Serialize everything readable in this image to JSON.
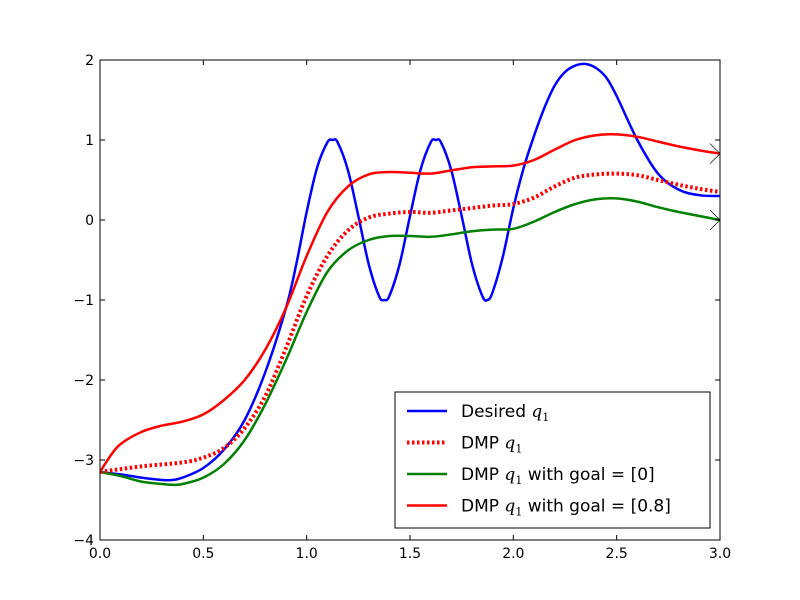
{
  "chart_data": {
    "type": "line",
    "title": "",
    "xlabel": "",
    "ylabel": "",
    "xlim": [
      0,
      3
    ],
    "ylim": [
      -4,
      2
    ],
    "xticks": [
      0,
      0.5,
      1,
      1.5,
      2,
      2.5,
      3
    ],
    "xtick_labels": [
      "0.0",
      "0.5",
      "1.0",
      "1.5",
      "2.0",
      "2.5",
      "3.0"
    ],
    "yticks": [
      -4,
      -3,
      -2,
      -1,
      0,
      1,
      2
    ],
    "ytick_labels": [
      "−4",
      "−3",
      "−2",
      "−1",
      "0",
      "1",
      "2"
    ],
    "grid": false,
    "legend_position": "bottom-right",
    "series": [
      {
        "name": "Desired q1",
        "legend_text": "Desired ",
        "legend_symbol": "q",
        "legend_subscript": "1",
        "legend_suffix": "",
        "color": "#0000ff",
        "style": "solid",
        "x": [
          0,
          0.1,
          0.2,
          0.3,
          0.35,
          0.4,
          0.5,
          0.6,
          0.7,
          0.8,
          0.9,
          0.95,
          1.0,
          1.05,
          1.1,
          1.125,
          1.15,
          1.2,
          1.25,
          1.3,
          1.35,
          1.375,
          1.4,
          1.45,
          1.5,
          1.55,
          1.6,
          1.625,
          1.65,
          1.7,
          1.75,
          1.8,
          1.85,
          1.875,
          1.9,
          1.95,
          2.0,
          2.05,
          2.1,
          2.15,
          2.2,
          2.25,
          2.3,
          2.35,
          2.4,
          2.45,
          2.5,
          2.6,
          2.7,
          2.8,
          2.9,
          3.0
        ],
        "y": [
          -3.15,
          -3.18,
          -3.22,
          -3.25,
          -3.25,
          -3.22,
          -3.1,
          -2.87,
          -2.5,
          -1.9,
          -1.1,
          -0.55,
          0.1,
          0.65,
          0.97,
          1.0,
          0.97,
          0.62,
          0.05,
          -0.55,
          -0.95,
          -1.0,
          -0.95,
          -0.55,
          0.05,
          0.62,
          0.97,
          1.0,
          0.97,
          0.62,
          0.05,
          -0.55,
          -0.95,
          -1.0,
          -0.9,
          -0.45,
          0.15,
          0.65,
          1.05,
          1.4,
          1.68,
          1.85,
          1.93,
          1.95,
          1.9,
          1.78,
          1.55,
          1.0,
          0.58,
          0.38,
          0.31,
          0.3
        ]
      },
      {
        "name": "DMP q1",
        "legend_text": "DMP ",
        "legend_symbol": "q",
        "legend_subscript": "1",
        "legend_suffix": "",
        "color": "#ff0000",
        "style": "dotted",
        "x": [
          0,
          0.2,
          0.4,
          0.5,
          0.6,
          0.7,
          0.8,
          0.9,
          1.0,
          1.1,
          1.2,
          1.3,
          1.4,
          1.5,
          1.6,
          1.7,
          1.8,
          1.9,
          2.0,
          2.1,
          2.2,
          2.3,
          2.4,
          2.5,
          2.6,
          2.7,
          2.8,
          2.9,
          3.0
        ],
        "y": [
          -3.15,
          -3.08,
          -3.03,
          -2.97,
          -2.85,
          -2.6,
          -2.2,
          -1.6,
          -0.95,
          -0.45,
          -0.13,
          0.03,
          0.08,
          0.1,
          0.09,
          0.12,
          0.15,
          0.18,
          0.2,
          0.28,
          0.42,
          0.53,
          0.57,
          0.58,
          0.56,
          0.5,
          0.44,
          0.39,
          0.35
        ]
      },
      {
        "name": "DMP q1 with goal = [0]",
        "legend_text": "DMP ",
        "legend_symbol": "q",
        "legend_subscript": "1",
        "legend_suffix": " with goal = [0]",
        "color": "#008000",
        "style": "solid",
        "x": [
          0,
          0.1,
          0.2,
          0.3,
          0.35,
          0.4,
          0.5,
          0.6,
          0.7,
          0.8,
          0.9,
          1.0,
          1.1,
          1.2,
          1.3,
          1.4,
          1.5,
          1.6,
          1.7,
          1.8,
          1.9,
          2.0,
          2.1,
          2.2,
          2.3,
          2.4,
          2.5,
          2.6,
          2.7,
          2.8,
          2.9,
          3.0
        ],
        "y": [
          -3.15,
          -3.2,
          -3.27,
          -3.3,
          -3.31,
          -3.3,
          -3.22,
          -3.05,
          -2.75,
          -2.3,
          -1.75,
          -1.15,
          -0.65,
          -0.38,
          -0.25,
          -0.2,
          -0.2,
          -0.21,
          -0.18,
          -0.14,
          -0.12,
          -0.11,
          -0.02,
          0.1,
          0.2,
          0.26,
          0.27,
          0.23,
          0.16,
          0.1,
          0.05,
          0.0
        ]
      },
      {
        "name": "DMP q1 with goal = [0.8]",
        "legend_text": "DMP ",
        "legend_symbol": "q",
        "legend_subscript": "1",
        "legend_suffix": " with goal = [0.8]",
        "color": "#ff0000",
        "style": "solid",
        "x": [
          0,
          0.05,
          0.1,
          0.2,
          0.3,
          0.4,
          0.5,
          0.6,
          0.7,
          0.8,
          0.9,
          1.0,
          1.1,
          1.2,
          1.3,
          1.4,
          1.5,
          1.6,
          1.7,
          1.8,
          1.9,
          2.0,
          2.1,
          2.2,
          2.3,
          2.4,
          2.5,
          2.6,
          2.7,
          2.8,
          2.9,
          3.0
        ],
        "y": [
          -3.15,
          -2.95,
          -2.8,
          -2.65,
          -2.57,
          -2.52,
          -2.43,
          -2.25,
          -2.0,
          -1.62,
          -1.1,
          -0.45,
          0.1,
          0.42,
          0.57,
          0.6,
          0.59,
          0.58,
          0.62,
          0.66,
          0.67,
          0.68,
          0.75,
          0.88,
          1.0,
          1.06,
          1.07,
          1.04,
          0.98,
          0.92,
          0.87,
          0.83
        ]
      }
    ]
  }
}
